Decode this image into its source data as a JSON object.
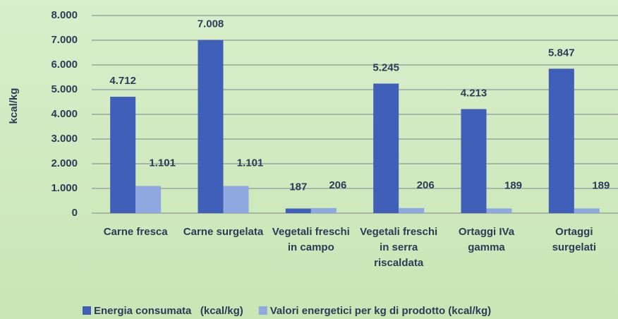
{
  "chart_data": {
    "type": "bar",
    "y_label": "kcal/kg",
    "categories": [
      "Carne fresca",
      "Carne surgelata",
      "Vegetali freschi in campo",
      "Vegetali freschi in serra riscaldata",
      "Ortaggi IVa gamma",
      "Ortaggi surgelati"
    ],
    "series": [
      {
        "name": "Energia consumata   (kcal/kg)",
        "color": "#3f5fb8",
        "values": [
          4712,
          7008,
          187,
          5245,
          4213,
          5847
        ],
        "value_labels": [
          "4.712",
          "7.008",
          "187",
          "5.245",
          "4.213",
          "5.847"
        ]
      },
      {
        "name": "Valori energetici per kg di prodotto (kcal/kg)",
        "color": "#8fa8e0",
        "values": [
          1101,
          1101,
          206,
          206,
          189,
          189
        ],
        "value_labels": [
          "1.101",
          "1.101",
          "206",
          "206",
          "189",
          "189"
        ]
      }
    ],
    "ylim": [
      0,
      8000
    ],
    "yticks": [
      0,
      {
        "value": 1000,
        "label": "1.000"
      },
      {
        "value": 2000,
        "label": "2.000"
      },
      {
        "value": 3000,
        "label": "3.000"
      },
      {
        "value": 4000,
        "label": "4.000"
      },
      {
        "value": 5000,
        "label": "5.000"
      },
      {
        "value": 6000,
        "label": "6.000"
      },
      {
        "value": 7000,
        "label": "7.000"
      },
      {
        "value": 8000,
        "label": "8.000"
      }
    ],
    "grid": true,
    "legend": "bottom"
  }
}
